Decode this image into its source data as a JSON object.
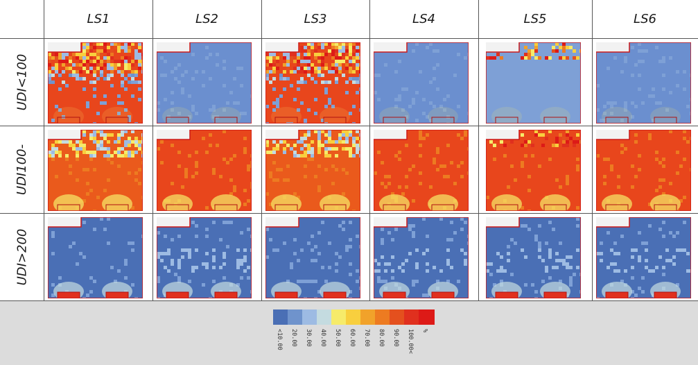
{
  "columns": [
    "LS1",
    "LS2",
    "LS3",
    "LS4",
    "LS5",
    "LS6"
  ],
  "rows": [
    "UDI<100",
    "UDI100-",
    "UDI>200"
  ],
  "legend": {
    "colors": [
      "#4a6fb5",
      "#6f93cc",
      "#9dbbe3",
      "#c4dbe0",
      "#f6eb6a",
      "#f8cf3e",
      "#f1a22a",
      "#ed7b21",
      "#e4501e",
      "#e0301e",
      "#dd1a17"
    ],
    "labels": [
      "<10.00",
      "20.00",
      "30.00",
      "40.00",
      "50.00",
      "60.00",
      "70.00",
      "80.00",
      "90.00",
      "100.00<",
      "%"
    ]
  },
  "maps": [
    [
      {
        "base": "#e8461c",
        "noise": "hot-top"
      },
      {
        "base": "#6b8fcf",
        "noise": "flat"
      },
      {
        "base": "#e8461c",
        "noise": "hot-top"
      },
      {
        "base": "#6b8fcf",
        "noise": "flat"
      },
      {
        "base": "#7ea0d6",
        "noise": "speckle-top"
      },
      {
        "base": "#6b8fcf",
        "noise": "flat"
      }
    ],
    [
      {
        "base": "#ea5a1c",
        "noise": "cool-top"
      },
      {
        "base": "#e8461c",
        "noise": "flat"
      },
      {
        "base": "#ea5a1c",
        "noise": "cool-top"
      },
      {
        "base": "#e8461c",
        "noise": "flat"
      },
      {
        "base": "#e8461c",
        "noise": "speckle-top"
      },
      {
        "base": "#e8461c",
        "noise": "flat"
      }
    ],
    [
      {
        "base": "#4a6fb5",
        "noise": "flat"
      },
      {
        "base": "#4a6fb5",
        "noise": "band"
      },
      {
        "base": "#4a6fb5",
        "noise": "flat"
      },
      {
        "base": "#4a6fb5",
        "noise": "band"
      },
      {
        "base": "#4a6fb5",
        "noise": "band"
      },
      {
        "base": "#4a6fb5",
        "noise": "band"
      }
    ]
  ]
}
